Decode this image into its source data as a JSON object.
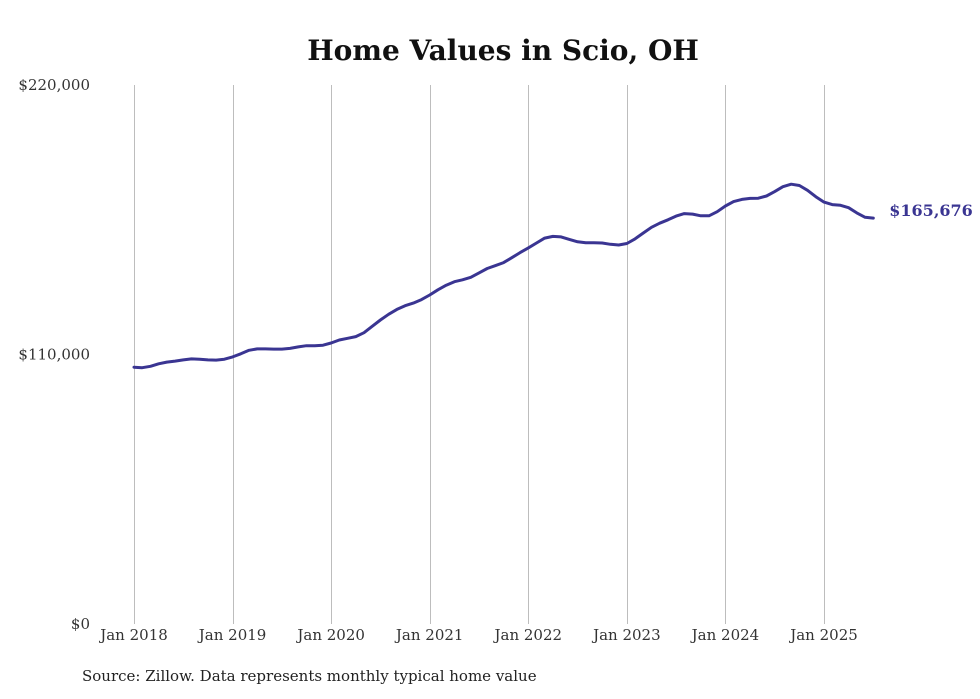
{
  "chart_data": {
    "type": "line",
    "title": "Home Values in Scio, OH",
    "xlabel": "",
    "ylabel": "",
    "ylim": [
      0,
      220000
    ],
    "y_ticks": [
      "$220,000",
      "$110,000",
      "$0"
    ],
    "y_tick_values": [
      220000,
      110000,
      0
    ],
    "x_ticks": [
      "Jan 2018",
      "Jan 2019",
      "Jan 2020",
      "Jan 2021",
      "Jan 2022",
      "Jan 2023",
      "Jan 2024",
      "Jan 2025"
    ],
    "x_tick_values": [
      2018.0,
      2019.0,
      2020.0,
      2021.0,
      2022.0,
      2023.0,
      2024.0,
      2025.0
    ],
    "grid": "vertical",
    "color": "#3a3592",
    "end_label": "$165,676",
    "series": [
      {
        "x": [
          2018.0,
          2018.083,
          2018.167,
          2018.25,
          2018.333,
          2018.417,
          2018.5,
          2018.583,
          2018.667,
          2018.75,
          2018.833,
          2018.917,
          2019.0,
          2019.083,
          2019.167,
          2019.25,
          2019.333,
          2019.417,
          2019.5,
          2019.583,
          2019.667,
          2019.75,
          2019.833,
          2019.917,
          2020.0,
          2020.083,
          2020.167,
          2020.25,
          2020.333,
          2020.417,
          2020.5,
          2020.583,
          2020.667,
          2020.75,
          2020.833,
          2020.917,
          2021.0,
          2021.083,
          2021.167,
          2021.25,
          2021.333,
          2021.417,
          2021.5,
          2021.583,
          2021.667,
          2021.75,
          2021.833,
          2021.917,
          2022.0,
          2022.083,
          2022.167,
          2022.25,
          2022.333,
          2022.417,
          2022.5,
          2022.583,
          2022.667,
          2022.75,
          2022.833,
          2022.917,
          2023.0,
          2023.083,
          2023.167,
          2023.25,
          2023.333,
          2023.417,
          2023.5,
          2023.583,
          2023.667,
          2023.75,
          2023.833,
          2023.917,
          2024.0,
          2024.083,
          2024.167,
          2024.25,
          2024.333,
          2024.417,
          2024.5,
          2024.583,
          2024.667,
          2024.75,
          2024.833,
          2024.917,
          2025.0,
          2025.083,
          2025.167,
          2025.25,
          2025.333,
          2025.417,
          2025.5
        ],
        "values": [
          104800,
          104600,
          105200,
          106200,
          106900,
          107300,
          107800,
          108200,
          108100,
          107800,
          107700,
          108100,
          109000,
          110300,
          111700,
          112300,
          112300,
          112200,
          112200,
          112500,
          113100,
          113600,
          113600,
          113800,
          114700,
          115900,
          116600,
          117300,
          118900,
          121500,
          124100,
          126400,
          128400,
          129900,
          131000,
          132400,
          134300,
          136400,
          138300,
          139700,
          140500,
          141500,
          143300,
          145100,
          146300,
          147500,
          149500,
          151600,
          153500,
          155500,
          157500,
          158200,
          158000,
          157000,
          156000,
          155600,
          155600,
          155500,
          155000,
          154700,
          155300,
          157200,
          159600,
          161900,
          163600,
          165000,
          166500,
          167500,
          167300,
          166600,
          166600,
          168300,
          170600,
          172400,
          173300,
          173700,
          173800,
          174700,
          176500,
          178500,
          179500,
          179000,
          177000,
          174400,
          172200,
          171200,
          170900,
          169900,
          167800,
          166000,
          165676
        ]
      }
    ]
  },
  "footer": {
    "source": "Source: Zillow. Data represents monthly typical home value"
  }
}
